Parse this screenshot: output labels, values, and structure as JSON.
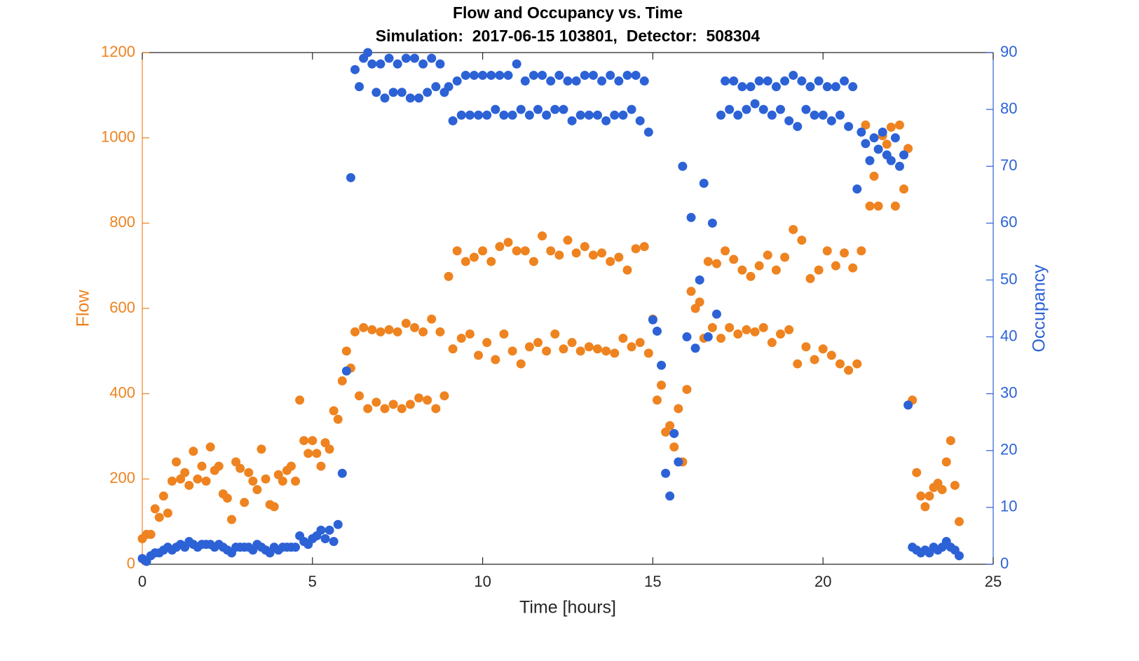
{
  "chart_data": {
    "type": "scatter",
    "title": "Flow and Occupancy vs. Time",
    "subtitle": "Simulation:  2017-06-15 103801,  Detector:  508304",
    "x_label": "Time [hours]",
    "y_label": "Flow",
    "y2_label": "Occupancy",
    "xlim": [
      0,
      25
    ],
    "xticks": [
      0,
      5,
      10,
      15,
      20,
      25
    ],
    "ylim": [
      0,
      1200
    ],
    "yticks": [
      0,
      200,
      400,
      600,
      800,
      1000,
      1200
    ],
    "y2lim": [
      0,
      90
    ],
    "y2ticks": [
      0,
      10,
      20,
      30,
      40,
      50,
      60,
      70,
      80,
      90
    ],
    "x": [
      0,
      0.125,
      0.25,
      0.375,
      0.5,
      0.625,
      0.75,
      0.875,
      1,
      1.125,
      1.25,
      1.375,
      1.5,
      1.625,
      1.75,
      1.875,
      2,
      2.125,
      2.25,
      2.375,
      2.5,
      2.625,
      2.75,
      2.875,
      3,
      3.125,
      3.25,
      3.375,
      3.5,
      3.625,
      3.75,
      3.875,
      4,
      4.125,
      4.25,
      4.375,
      4.5,
      4.625,
      4.75,
      4.875,
      5,
      5.125,
      5.25,
      5.375,
      5.5,
      5.625,
      5.75,
      5.875,
      6,
      6.125,
      6.25,
      6.375,
      6.5,
      6.625,
      6.75,
      6.875,
      7,
      7.125,
      7.25,
      7.375,
      7.5,
      7.625,
      7.75,
      7.875,
      8,
      8.125,
      8.25,
      8.375,
      8.5,
      8.625,
      8.75,
      8.875,
      9,
      9.125,
      9.25,
      9.375,
      9.5,
      9.625,
      9.75,
      9.875,
      10,
      10.125,
      10.25,
      10.375,
      10.5,
      10.625,
      10.75,
      10.875,
      11,
      11.125,
      11.25,
      11.375,
      11.5,
      11.625,
      11.75,
      11.875,
      12,
      12.125,
      12.25,
      12.375,
      12.5,
      12.625,
      12.75,
      12.875,
      13,
      13.125,
      13.25,
      13.375,
      13.5,
      13.625,
      13.75,
      13.875,
      14,
      14.125,
      14.25,
      14.375,
      14.5,
      14.625,
      14.75,
      14.875,
      15,
      15.125,
      15.25,
      15.375,
      15.5,
      15.625,
      15.75,
      15.875,
      16,
      16.125,
      16.25,
      16.375,
      16.5,
      16.625,
      16.75,
      16.875,
      17,
      17.125,
      17.25,
      17.375,
      17.5,
      17.625,
      17.75,
      17.875,
      18,
      18.125,
      18.25,
      18.375,
      18.5,
      18.625,
      18.75,
      18.875,
      19,
      19.125,
      19.25,
      19.375,
      19.5,
      19.625,
      19.75,
      19.875,
      20,
      20.125,
      20.25,
      20.375,
      20.5,
      20.625,
      20.75,
      20.875,
      21,
      21.125,
      21.25,
      21.375,
      21.5,
      21.625,
      21.75,
      21.875,
      22,
      22.125,
      22.25,
      22.375,
      22.5,
      22.625,
      22.75,
      22.875,
      23,
      23.125,
      23.25,
      23.375,
      23.5,
      23.625,
      23.75,
      23.875,
      24
    ],
    "series": [
      {
        "name": "Flow",
        "color": "#ee8320",
        "axis": "y",
        "values": [
          60,
          70,
          70,
          130,
          110,
          160,
          120,
          195,
          240,
          200,
          215,
          185,
          265,
          200,
          230,
          195,
          275,
          220,
          230,
          165,
          155,
          105,
          240,
          225,
          145,
          215,
          195,
          175,
          270,
          200,
          140,
          135,
          210,
          195,
          220,
          230,
          195,
          385,
          290,
          260,
          290,
          260,
          230,
          285,
          270,
          360,
          340,
          430,
          500,
          460,
          545,
          395,
          555,
          365,
          550,
          380,
          545,
          365,
          550,
          375,
          545,
          365,
          565,
          375,
          555,
          390,
          545,
          385,
          575,
          365,
          545,
          395,
          675,
          505,
          735,
          530,
          710,
          540,
          720,
          490,
          735,
          520,
          710,
          480,
          745,
          540,
          755,
          500,
          735,
          470,
          735,
          510,
          710,
          520,
          770,
          500,
          735,
          540,
          725,
          505,
          760,
          520,
          730,
          500,
          745,
          510,
          725,
          505,
          730,
          500,
          710,
          495,
          720,
          530,
          690,
          510,
          740,
          520,
          745,
          495,
          575,
          385,
          420,
          310,
          325,
          275,
          365,
          240,
          410,
          640,
          600,
          615,
          530,
          710,
          555,
          705,
          530,
          735,
          555,
          715,
          540,
          690,
          550,
          675,
          545,
          700,
          555,
          725,
          520,
          690,
          540,
          720,
          550,
          785,
          470,
          760,
          510,
          670,
          480,
          690,
          505,
          735,
          490,
          700,
          470,
          730,
          455,
          695,
          470,
          735,
          1030,
          840,
          910,
          840,
          1005,
          985,
          1025,
          840,
          1030,
          880,
          975,
          385,
          215,
          160,
          135,
          160,
          180,
          190,
          175,
          240,
          290,
          185,
          100
        ]
      },
      {
        "name": "Occupancy",
        "color": "#2c62d6",
        "axis": "y2",
        "values": [
          1,
          0.5,
          1.5,
          2,
          2,
          2.5,
          3,
          2.5,
          3,
          3.5,
          3,
          4,
          3.5,
          3,
          3.5,
          3.5,
          3.5,
          3,
          3.5,
          3,
          2.5,
          2,
          3,
          3,
          3,
          3,
          2.5,
          3.5,
          3,
          2.5,
          2,
          3,
          2.5,
          3,
          3,
          3,
          3,
          5,
          4,
          3.5,
          4.5,
          5,
          6,
          4.5,
          6,
          4,
          7,
          16,
          34,
          68,
          87,
          84,
          89,
          90,
          88,
          83,
          88,
          82,
          89,
          83,
          88,
          83,
          89,
          82,
          89,
          82,
          88,
          83,
          89,
          84,
          88,
          83,
          84,
          78,
          85,
          79,
          86,
          79,
          86,
          79,
          86,
          79,
          86,
          80,
          86,
          79,
          86,
          79,
          88,
          80,
          85,
          79,
          86,
          80,
          86,
          79,
          85,
          80,
          86,
          80,
          85,
          78,
          85,
          79,
          86,
          79,
          86,
          79,
          85,
          78,
          86,
          79,
          85,
          79,
          86,
          80,
          86,
          78,
          85,
          76,
          43,
          41,
          35,
          16,
          12,
          23,
          18,
          70,
          40,
          61,
          38,
          50,
          67,
          40,
          60,
          44,
          79,
          85,
          80,
          85,
          79,
          84,
          80,
          84,
          81,
          85,
          80,
          85,
          79,
          84,
          80,
          85,
          78,
          86,
          77,
          85,
          80,
          84,
          79,
          85,
          79,
          84,
          78,
          84,
          79,
          85,
          77,
          84,
          66,
          76,
          74,
          71,
          75,
          73,
          76,
          72,
          71,
          75,
          70,
          72,
          28,
          3,
          2.5,
          2,
          2.5,
          2,
          3,
          2.5,
          3,
          4,
          3,
          2.5,
          1.5
        ]
      }
    ]
  }
}
